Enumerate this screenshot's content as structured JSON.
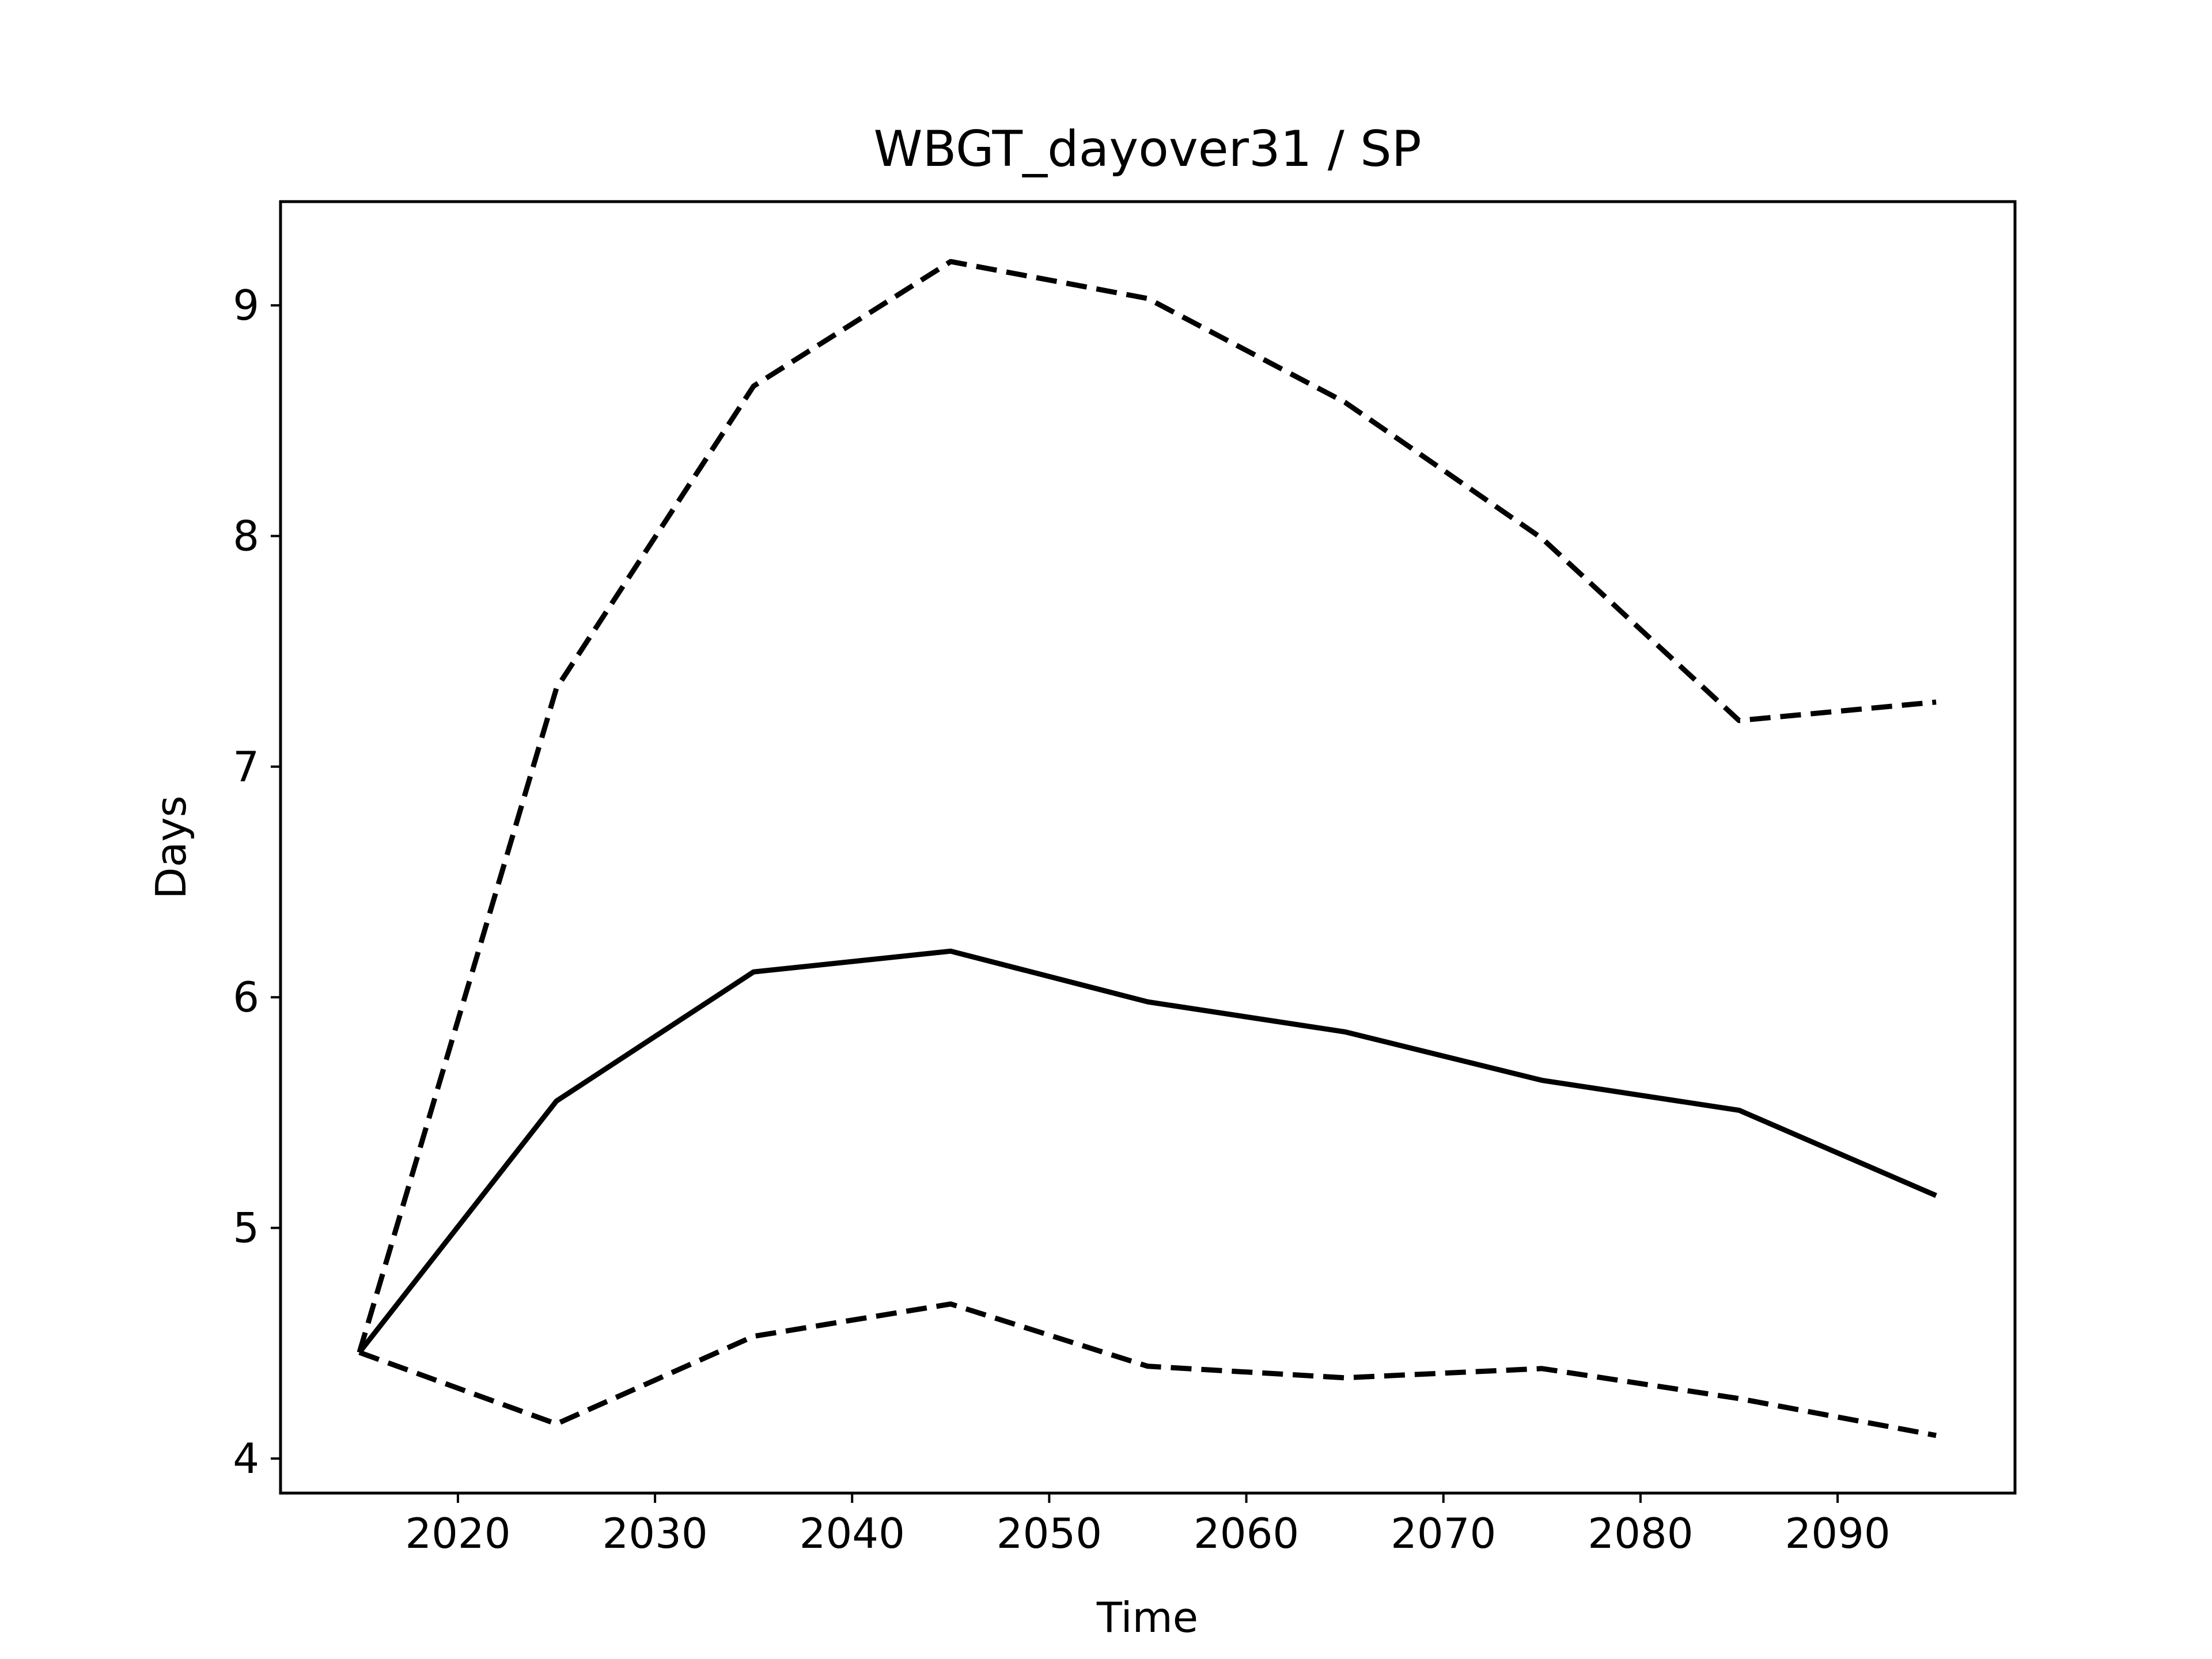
{
  "chart_data": {
    "type": "line",
    "title": "WBGT_dayover31 / SP",
    "xlabel": "Time",
    "ylabel": "Days",
    "xlim": [
      2011,
      2099
    ],
    "ylim": [
      3.85,
      9.45
    ],
    "xticks": [
      2020,
      2030,
      2040,
      2050,
      2060,
      2070,
      2080,
      2090
    ],
    "yticks": [
      4,
      5,
      6,
      7,
      8,
      9
    ],
    "grid": false,
    "legend": "none",
    "x": [
      2015,
      2025,
      2035,
      2045,
      2055,
      2065,
      2075,
      2085,
      2095
    ],
    "series": [
      {
        "style": "solid",
        "color": "#000000",
        "values": [
          4.46,
          5.55,
          6.11,
          6.2,
          5.98,
          5.85,
          5.64,
          5.51,
          5.14
        ]
      },
      {
        "style": "dashed",
        "color": "#000000",
        "values": [
          4.46,
          7.34,
          8.65,
          9.19,
          9.03,
          8.58,
          7.99,
          7.2,
          7.28
        ]
      },
      {
        "style": "dashed",
        "color": "#000000",
        "values": [
          4.46,
          4.15,
          4.53,
          4.67,
          4.4,
          4.35,
          4.39,
          4.26,
          4.1
        ]
      }
    ]
  }
}
